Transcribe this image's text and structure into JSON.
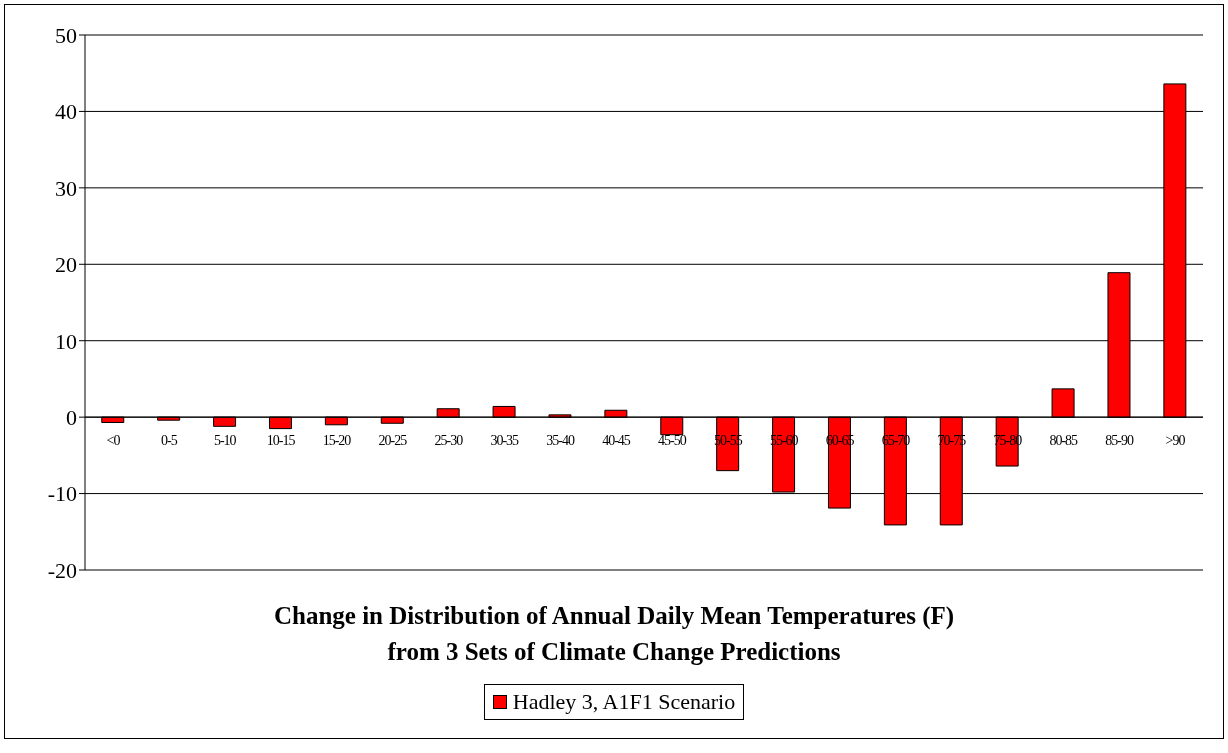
{
  "chart_data": {
    "type": "bar",
    "title": "Change in Distribution of Annual Daily Mean Temperatures (F)\nfrom 3 Sets of Climate Change Predictions",
    "categories": [
      "<0",
      "0-5",
      "5-10",
      "10-15",
      "15-20",
      "20-25",
      "25-30",
      "30-35",
      "35-40",
      "40-45",
      "45-50",
      "50-55",
      "55-60",
      "60-65",
      "65-70",
      "70-75",
      "75-80",
      "80-85",
      "85-90",
      ">90"
    ],
    "series": [
      {
        "name": "Hadley 3, A1F1 Scenario",
        "color": "#ff0000",
        "values": [
          -0.7,
          -0.4,
          -1.2,
          -1.5,
          -1.0,
          -0.8,
          1.1,
          1.4,
          0.3,
          0.9,
          -2.3,
          -7.0,
          -9.8,
          -11.9,
          -14.1,
          -14.1,
          -6.4,
          3.7,
          18.9,
          43.6
        ]
      }
    ],
    "ylim": [
      -20,
      50
    ],
    "yticks": [
      -20,
      -10,
      0,
      10,
      20,
      30,
      40,
      50
    ],
    "grid": "y",
    "legend": "bottom"
  }
}
